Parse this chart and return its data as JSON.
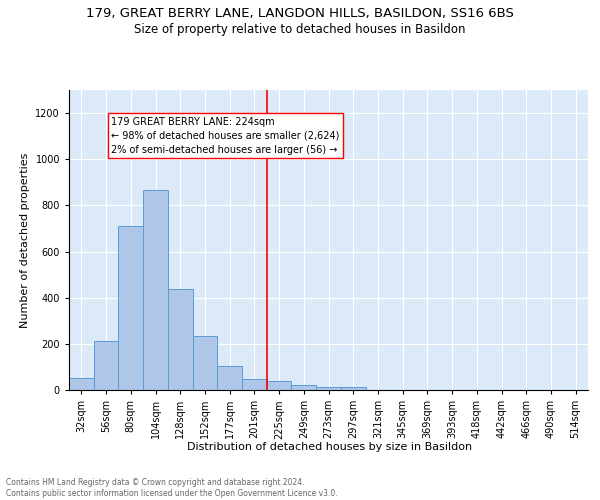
{
  "title1": "179, GREAT BERRY LANE, LANGDON HILLS, BASILDON, SS16 6BS",
  "title2": "Size of property relative to detached houses in Basildon",
  "xlabel": "Distribution of detached houses by size in Basildon",
  "ylabel": "Number of detached properties",
  "bin_labels": [
    "32sqm",
    "56sqm",
    "80sqm",
    "104sqm",
    "128sqm",
    "152sqm",
    "177sqm",
    "201sqm",
    "225sqm",
    "249sqm",
    "273sqm",
    "297sqm",
    "321sqm",
    "345sqm",
    "369sqm",
    "393sqm",
    "418sqm",
    "442sqm",
    "466sqm",
    "490sqm",
    "514sqm"
  ],
  "bar_values": [
    50,
    213,
    710,
    868,
    437,
    232,
    102,
    47,
    40,
    22,
    11,
    11,
    0,
    0,
    0,
    0,
    0,
    0,
    0,
    0,
    0
  ],
  "bar_color": "#aec6e8",
  "bar_edge_color": "#5b9bd5",
  "vline_color": "red",
  "annotation_text": "179 GREAT BERRY LANE: 224sqm\n← 98% of detached houses are smaller (2,624)\n2% of semi-detached houses are larger (56) →",
  "annotation_box_color": "white",
  "annotation_box_edge": "red",
  "ylim": [
    0,
    1300
  ],
  "yticks": [
    0,
    200,
    400,
    600,
    800,
    1000,
    1200
  ],
  "footnote": "Contains HM Land Registry data © Crown copyright and database right 2024.\nContains public sector information licensed under the Open Government Licence v3.0.",
  "bg_color": "#dce9f8",
  "title1_fontsize": 9.5,
  "title2_fontsize": 8.5,
  "xlabel_fontsize": 8,
  "ylabel_fontsize": 8,
  "footnote_fontsize": 5.5,
  "tick_fontsize": 7,
  "annot_fontsize": 7
}
